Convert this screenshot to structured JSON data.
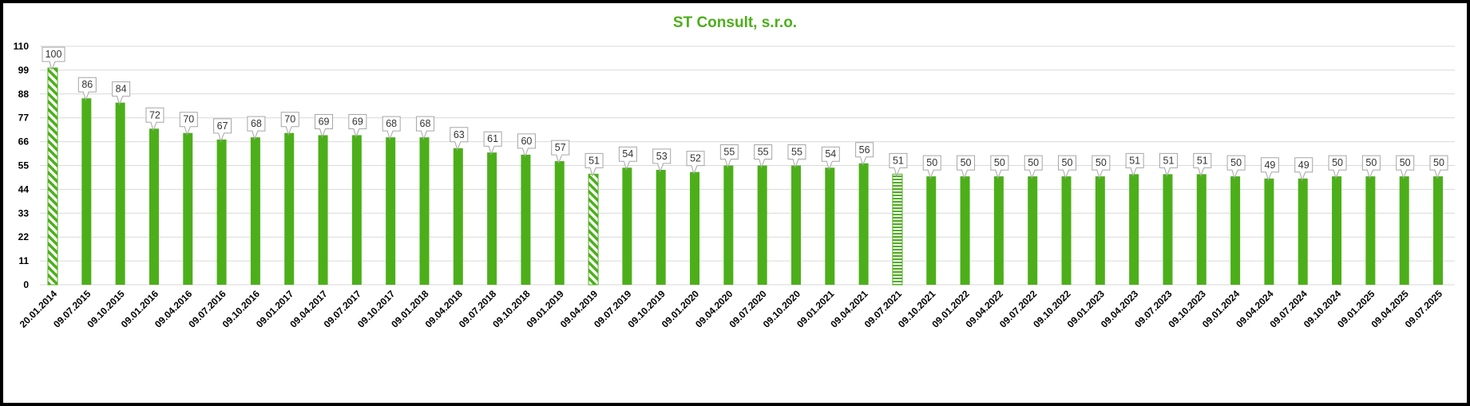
{
  "chart_data": {
    "type": "bar",
    "title": "ST Consult, s.r.o.",
    "xlabel": "",
    "ylabel": "",
    "ylim": [
      0,
      110
    ],
    "yticks": [
      0,
      11,
      22,
      33,
      44,
      55,
      66,
      77,
      88,
      99,
      110
    ],
    "grid": true,
    "legend": "none",
    "colors": {
      "bar": "#4CAF1A",
      "title": "#4CAF1A",
      "grid": "#D9D9D9"
    },
    "categories": [
      "20.01.2014",
      "09.07.2015",
      "09.10.2015",
      "09.01.2016",
      "09.04.2016",
      "09.07.2016",
      "09.10.2016",
      "09.01.2017",
      "09.04.2017",
      "09.07.2017",
      "09.10.2017",
      "09.01.2018",
      "09.04.2018",
      "09.07.2018",
      "09.10.2018",
      "09.01.2019",
      "09.04.2019",
      "09.07.2019",
      "09.10.2019",
      "09.01.2020",
      "09.04.2020",
      "09.07.2020",
      "09.10.2020",
      "09.01.2021",
      "09.04.2021",
      "09.07.2021",
      "09.10.2021",
      "09.01.2022",
      "09.04.2022",
      "09.07.2022",
      "09.10.2022",
      "09.01.2023",
      "09.04.2023",
      "09.07.2023",
      "09.10.2023",
      "09.01.2024",
      "09.04.2024",
      "09.07.2024",
      "09.10.2024",
      "09.01.2025",
      "09.04.2025",
      "09.07.2025"
    ],
    "values": [
      100,
      86,
      84,
      72,
      70,
      67,
      68,
      70,
      69,
      69,
      68,
      68,
      63,
      61,
      60,
      57,
      51,
      54,
      53,
      52,
      55,
      55,
      55,
      54,
      56,
      51,
      50,
      50,
      50,
      50,
      50,
      50,
      51,
      51,
      51,
      50,
      49,
      49,
      50,
      50,
      50,
      50
    ],
    "data_labels": [
      "100",
      "86",
      "84",
      "72",
      "70",
      "67",
      "68",
      "70",
      "69",
      "69",
      "68",
      "68",
      "63",
      "61",
      "60",
      "57",
      "51",
      "54",
      "53",
      "52",
      "55",
      "55",
      "55",
      "54",
      "56",
      "51",
      "50",
      "50",
      "50",
      "50",
      "50",
      "50",
      "51",
      "51",
      "51",
      "50",
      "49",
      "49",
      "50",
      "50",
      "50",
      "50"
    ],
    "patterns": [
      "diagonal",
      "solid",
      "solid",
      "solid",
      "solid",
      "solid",
      "solid",
      "solid",
      "solid",
      "solid",
      "solid",
      "solid",
      "solid",
      "solid",
      "solid",
      "solid",
      "diagonal",
      "solid",
      "solid",
      "solid",
      "solid",
      "solid",
      "solid",
      "solid",
      "solid",
      "horizontal",
      "solid",
      "solid",
      "solid",
      "solid",
      "solid",
      "solid",
      "solid",
      "solid",
      "solid",
      "solid",
      "solid",
      "solid",
      "solid",
      "solid",
      "solid",
      "solid"
    ]
  }
}
